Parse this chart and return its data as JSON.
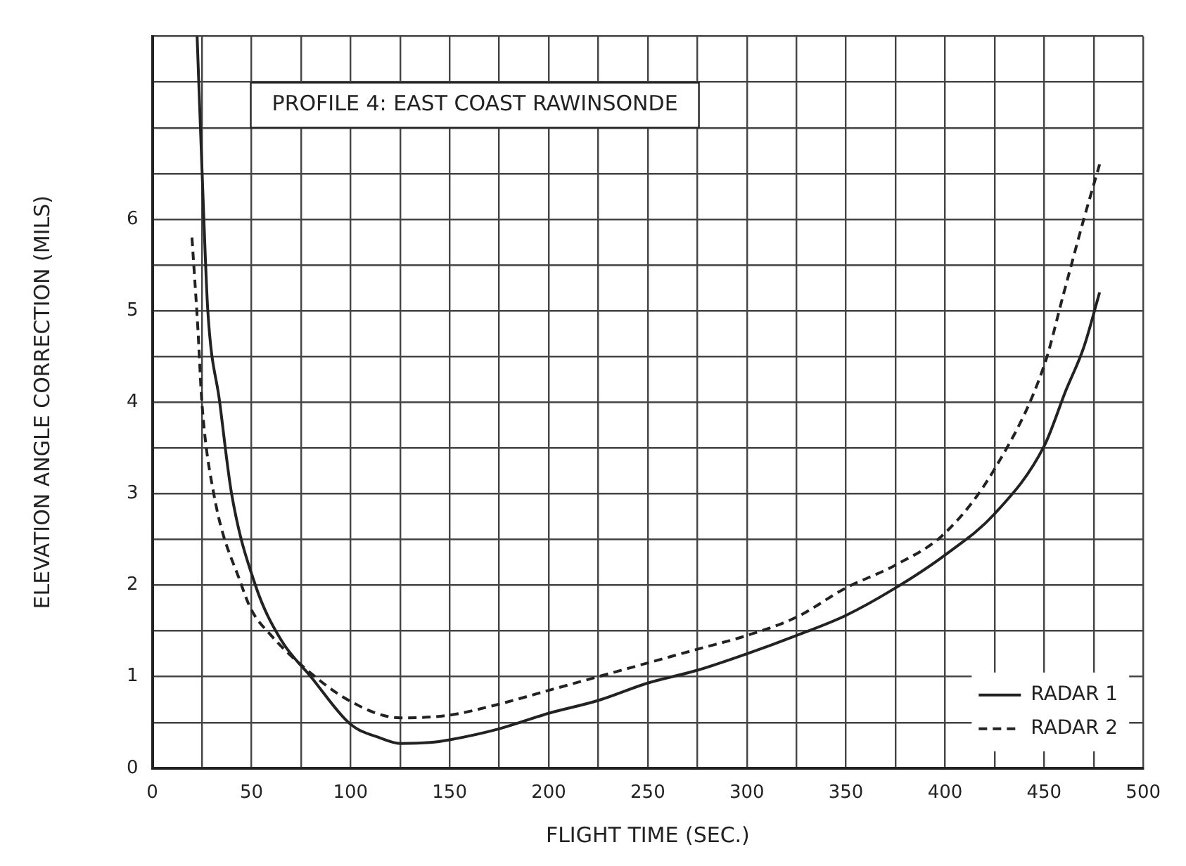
{
  "chart_data": {
    "type": "line",
    "title": "PROFILE 4: EAST COAST RAWINSONDE",
    "xlabel": "FLIGHT TIME (SEC.)",
    "ylabel": "ELEVATION ANGLE CORRECTION (MILS)",
    "series": [
      {
        "name": "RADAR 1",
        "color": "#222222",
        "line_style": "solid",
        "x": [
          22.6,
          26,
          28,
          34,
          40,
          52,
          65,
          80,
          100,
          115,
          125,
          140,
          150,
          175,
          200,
          225,
          250,
          275,
          300,
          325,
          350,
          375,
          400,
          425,
          450,
          461,
          470,
          478
        ],
        "values": [
          8,
          6,
          5,
          4,
          3,
          2,
          1.4,
          1,
          0.48,
          0.33,
          0.27,
          0.28,
          0.31,
          0.43,
          0.6,
          0.74,
          0.93,
          1.07,
          1.25,
          1.45,
          1.67,
          1.97,
          2.33,
          2.78,
          3.52,
          4.13,
          4.6,
          5.2
        ]
      },
      {
        "name": "RADAR 2",
        "color": "#222222",
        "line_style": "dashed",
        "x": [
          20,
          23,
          25,
          31,
          45,
          50,
          60,
          75,
          100,
          125,
          150,
          175,
          200,
          225,
          250,
          275,
          300,
          325,
          350,
          375,
          400,
          425,
          450,
          460,
          470,
          478
        ],
        "values": [
          5.8,
          4.8,
          4,
          3,
          2,
          1.73,
          1.45,
          1.13,
          0.73,
          0.55,
          0.58,
          0.7,
          0.85,
          1,
          1.15,
          1.3,
          1.45,
          1.65,
          1.97,
          2.22,
          2.57,
          3.27,
          4.4,
          5.2,
          6,
          6.6
        ]
      }
    ],
    "xlim": [
      0,
      500
    ],
    "ylim": [
      0,
      8
    ],
    "xticks": [
      0,
      {
        "value": 25,
        "label": null
      },
      50,
      {
        "value": 75,
        "label": null
      },
      100,
      {
        "value": 125,
        "label": null
      },
      150,
      {
        "value": 175,
        "label": null
      },
      200,
      {
        "value": 225,
        "label": null
      },
      250,
      {
        "value": 275,
        "label": null
      },
      300,
      {
        "value": 325,
        "label": null
      },
      350,
      {
        "value": 375,
        "label": null
      },
      400,
      {
        "value": 425,
        "label": null
      },
      450,
      {
        "value": 475,
        "label": null
      },
      500
    ],
    "yticks": [
      0,
      {
        "value": 0.5,
        "label": null
      },
      1,
      {
        "value": 1.5,
        "label": null
      },
      2,
      {
        "value": 2.5,
        "label": null
      },
      3,
      {
        "value": 3.5,
        "label": null
      },
      4,
      {
        "value": 4.5,
        "label": null
      },
      5,
      {
        "value": 5.5,
        "label": null
      },
      6,
      {
        "value": 6.5,
        "label": null
      },
      {
        "value": 7,
        "label": null
      },
      {
        "value": 7.5,
        "label": null
      },
      {
        "value": 8,
        "label": null
      }
    ],
    "grid": true,
    "legend": "bottom right",
    "marker": "none"
  }
}
